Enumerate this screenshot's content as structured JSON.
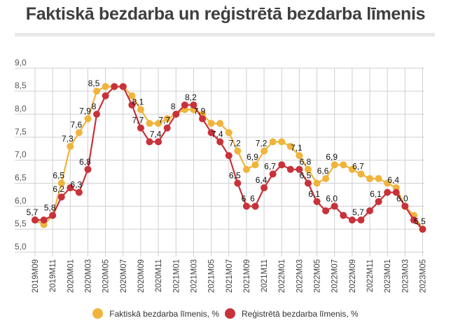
{
  "chart_data": {
    "type": "line",
    "title": "Faktiskā bezdarba un reģistrētā bezdarba līmenis",
    "xlabel": "",
    "ylabel": "",
    "ylim": [
      5.0,
      9.0
    ],
    "yticks": [
      "5,0",
      "5,5",
      "6,0",
      "6,5",
      "7,0",
      "7,5",
      "8,0",
      "8,5",
      "9,0"
    ],
    "ytick_values": [
      5.0,
      5.5,
      6.0,
      6.5,
      7.0,
      7.5,
      8.0,
      8.5,
      9.0
    ],
    "grid": true,
    "legend_position": "bottom-center",
    "x": [
      "2019M09",
      "2019M10",
      "2019M11",
      "2019M12",
      "2020M01",
      "2020M02",
      "2020M03",
      "2020M04",
      "2020M05",
      "2020M06",
      "2020M07",
      "2020M08",
      "2020M09",
      "2020M10",
      "2020M11",
      "2020M12",
      "2021M01",
      "2021M02",
      "2021M03",
      "2021M04",
      "2021M05",
      "2021M06",
      "2021M07",
      "2021M08",
      "2021M09",
      "2021M10",
      "2021M11",
      "2021M12",
      "2022M01",
      "2022M02",
      "2022M03",
      "2022M04",
      "2022M05",
      "2022M06",
      "2022M07",
      "2022M08",
      "2022M09",
      "2022M10",
      "2022M11",
      "2022M12",
      "2023M01",
      "2023M02",
      "2023M03",
      "2023M04",
      "2023M05"
    ],
    "xtick_labels": [
      "2019M09",
      "2019M11",
      "2020M01",
      "2020M03",
      "2020M05",
      "2020M07",
      "2020M09",
      "2020M11",
      "2021M01",
      "2021M03",
      "2021M05",
      "2021M07",
      "2021M09",
      "2021M11",
      "2022M01",
      "2022M03",
      "2022M05",
      "2022M07",
      "2022M09",
      "2022M11",
      "2023M01",
      "2023M03",
      "2023M05"
    ],
    "series": [
      {
        "name": "Faktiskā bezdarba līmenis, %",
        "color": "#f0b43c",
        "values": [
          5.7,
          5.6,
          5.8,
          6.5,
          7.3,
          7.6,
          7.9,
          8.5,
          8.6,
          8.6,
          8.6,
          8.4,
          8.1,
          7.8,
          7.8,
          7.9,
          8.0,
          8.1,
          8.1,
          8.0,
          7.8,
          7.8,
          7.6,
          7.2,
          6.8,
          6.9,
          7.2,
          7.4,
          7.4,
          7.3,
          7.1,
          6.8,
          6.5,
          6.6,
          6.9,
          6.9,
          6.8,
          6.7,
          6.6,
          6.6,
          6.5,
          6.4,
          6.0,
          5.8,
          5.5
        ]
      },
      {
        "name": "Reģistrētā bezdarba līmenis, %",
        "color": "#c8323a",
        "values": [
          5.7,
          5.7,
          5.8,
          6.2,
          6.4,
          6.3,
          6.8,
          8.0,
          8.4,
          8.6,
          8.6,
          8.2,
          7.7,
          7.4,
          7.4,
          7.7,
          8.0,
          8.2,
          8.2,
          7.9,
          7.6,
          7.4,
          7.1,
          6.5,
          6.0,
          6.0,
          6.4,
          6.7,
          6.9,
          6.8,
          6.8,
          6.5,
          6.1,
          5.9,
          6.0,
          5.8,
          5.7,
          5.7,
          5.9,
          6.1,
          6.3,
          6.3,
          6.0,
          5.7,
          5.5
        ]
      }
    ],
    "data_labels": [
      {
        "series": 1,
        "index": 0,
        "text": "5,7"
      },
      {
        "series": 1,
        "index": 2,
        "text": "5,8"
      },
      {
        "series": 0,
        "index": 3,
        "text": "6,5"
      },
      {
        "series": 1,
        "index": 3,
        "text": "6,2"
      },
      {
        "series": 0,
        "index": 4,
        "text": "7,3"
      },
      {
        "series": 1,
        "index": 5,
        "text": "6,3"
      },
      {
        "series": 0,
        "index": 5,
        "text": "7,6"
      },
      {
        "series": 0,
        "index": 6,
        "text": "7,9"
      },
      {
        "series": 1,
        "index": 6,
        "text": "6,8"
      },
      {
        "series": 1,
        "index": 7,
        "text": "8"
      },
      {
        "series": 0,
        "index": 7,
        "text": "8,5"
      },
      {
        "series": 0,
        "index": 12,
        "text": "8,1"
      },
      {
        "series": 1,
        "index": 12,
        "text": "7,7"
      },
      {
        "series": 1,
        "index": 14,
        "text": "7,4"
      },
      {
        "series": 1,
        "index": 15,
        "text": "7,7"
      },
      {
        "series": 1,
        "index": 16,
        "text": "8"
      },
      {
        "series": 1,
        "index": 18,
        "text": "8,2"
      },
      {
        "series": 1,
        "index": 19,
        "text": "7,9"
      },
      {
        "series": 1,
        "index": 21,
        "text": "7,4"
      },
      {
        "series": 0,
        "index": 23,
        "text": "7,2"
      },
      {
        "series": 1,
        "index": 23,
        "text": "6,5"
      },
      {
        "series": 1,
        "index": 24,
        "text": "6"
      },
      {
        "series": 1,
        "index": 25,
        "text": "6"
      },
      {
        "series": 0,
        "index": 25,
        "text": "6,9"
      },
      {
        "series": 0,
        "index": 26,
        "text": "7,2"
      },
      {
        "series": 1,
        "index": 26,
        "text": "6,4"
      },
      {
        "series": 1,
        "index": 27,
        "text": "6,7"
      },
      {
        "series": 0,
        "index": 30,
        "text": "7,1"
      },
      {
        "series": 0,
        "index": 31,
        "text": "6,8"
      },
      {
        "series": 1,
        "index": 31,
        "text": "6,5"
      },
      {
        "series": 1,
        "index": 32,
        "text": "6,1"
      },
      {
        "series": 0,
        "index": 33,
        "text": "6,6"
      },
      {
        "series": 0,
        "index": 34,
        "text": "6,9"
      },
      {
        "series": 1,
        "index": 34,
        "text": "6,0"
      },
      {
        "series": 0,
        "index": 37,
        "text": "6,7"
      },
      {
        "series": 1,
        "index": 37,
        "text": "5,7"
      },
      {
        "series": 1,
        "index": 39,
        "text": "6,1"
      },
      {
        "series": 0,
        "index": 41,
        "text": "6,4"
      },
      {
        "series": 1,
        "index": 42,
        "text": "6,0"
      },
      {
        "series": 1,
        "index": 44,
        "text": "5,5"
      }
    ]
  },
  "header": {
    "title": "Faktiskā bezdarba un reģistrētā bezdarba līmenis"
  },
  "legend": {
    "items": [
      {
        "label": "Faktiskā bezdarba līmenis, %",
        "color": "#f0b43c"
      },
      {
        "label": "Reģistrētā bezdarba līmenis, %",
        "color": "#c8323a"
      }
    ]
  }
}
